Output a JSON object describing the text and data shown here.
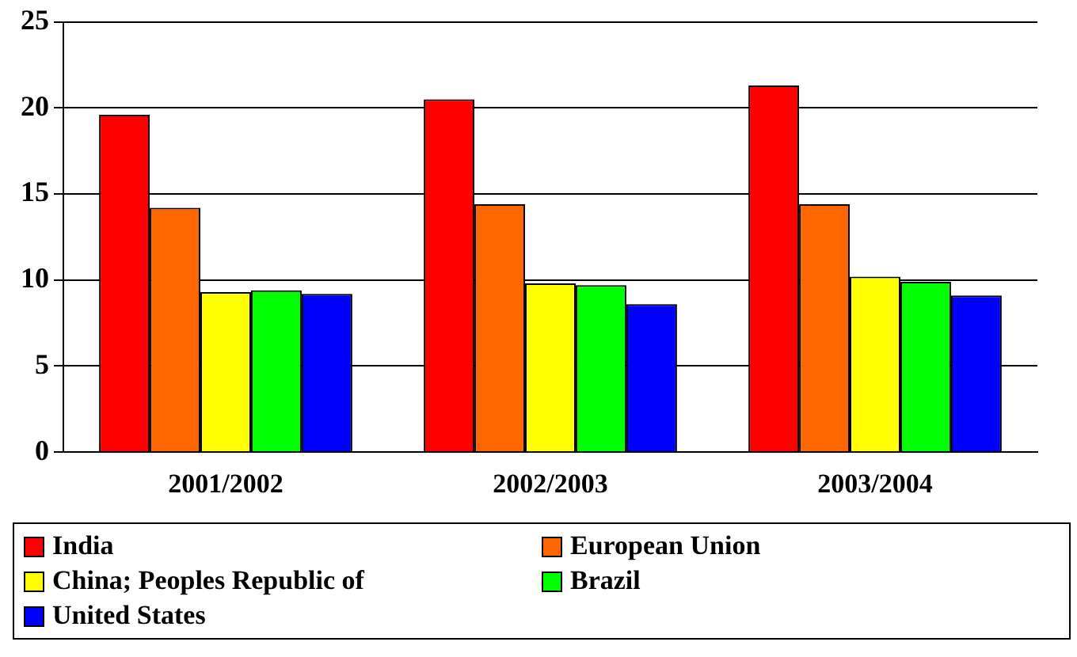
{
  "chart_data": {
    "type": "bar",
    "categories": [
      "2001/2002",
      "2002/2003",
      "2003/2004"
    ],
    "series": [
      {
        "name": "India",
        "color": "#ff0000",
        "values": [
          19.6,
          20.5,
          21.3
        ]
      },
      {
        "name": "European Union",
        "color": "#ff6600",
        "values": [
          14.2,
          14.4,
          14.4
        ]
      },
      {
        "name": "China; Peoples Republic of",
        "color": "#ffff00",
        "values": [
          9.3,
          9.8,
          10.2
        ]
      },
      {
        "name": "Brazil",
        "color": "#00ff00",
        "values": [
          9.4,
          9.7,
          9.9
        ]
      },
      {
        "name": "United States",
        "color": "#0000ff",
        "values": [
          9.2,
          8.6,
          9.1
        ]
      }
    ],
    "ylim": [
      0,
      25
    ],
    "yticks": [
      0,
      5,
      10,
      15,
      20,
      25
    ],
    "grid": "y",
    "legend": "bottom"
  }
}
